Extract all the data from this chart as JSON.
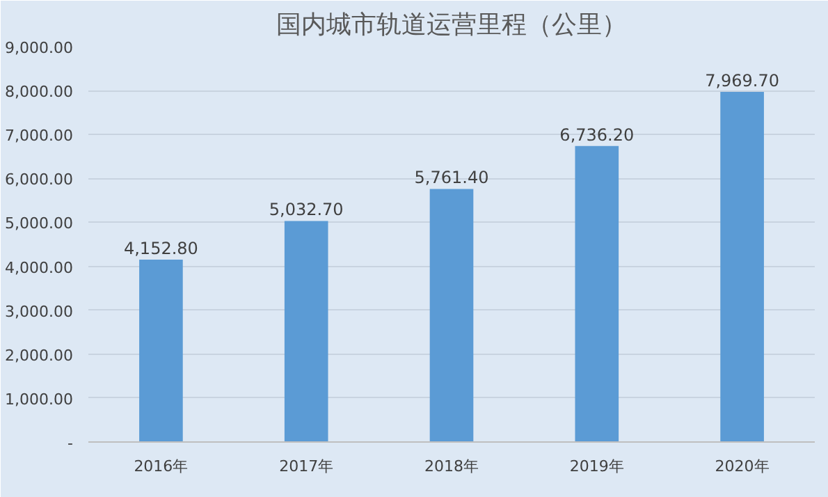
{
  "chart_data": {
    "type": "bar",
    "title": "国内城市轨道运营里程（公里）",
    "categories": [
      "2016年",
      "2017年",
      "2018年",
      "2019年",
      "2020年"
    ],
    "values": [
      4152.8,
      5032.7,
      5761.4,
      6736.2,
      7969.7
    ],
    "color": "#5b9bd5",
    "ylim": [
      0,
      9000
    ],
    "yticks": [
      {
        "value": 0,
        "label": "-"
      },
      {
        "value": 1000,
        "label": "1,000.00"
      },
      {
        "value": 2000,
        "label": "2,000.00"
      },
      {
        "value": 3000,
        "label": "3,000.00"
      },
      {
        "value": 4000,
        "label": "4,000.00"
      },
      {
        "value": 5000,
        "label": "5,000.00"
      },
      {
        "value": 6000,
        "label": "6,000.00"
      },
      {
        "value": 7000,
        "label": "7,000.00"
      },
      {
        "value": 8000,
        "label": "8,000.00"
      },
      {
        "value": 9000,
        "label": "9,000.00"
      }
    ],
    "value_labels": [
      "4,152.80",
      "5,032.70",
      "5,761.40",
      "6,736.20",
      "7,969.70"
    ],
    "grid": "y"
  }
}
